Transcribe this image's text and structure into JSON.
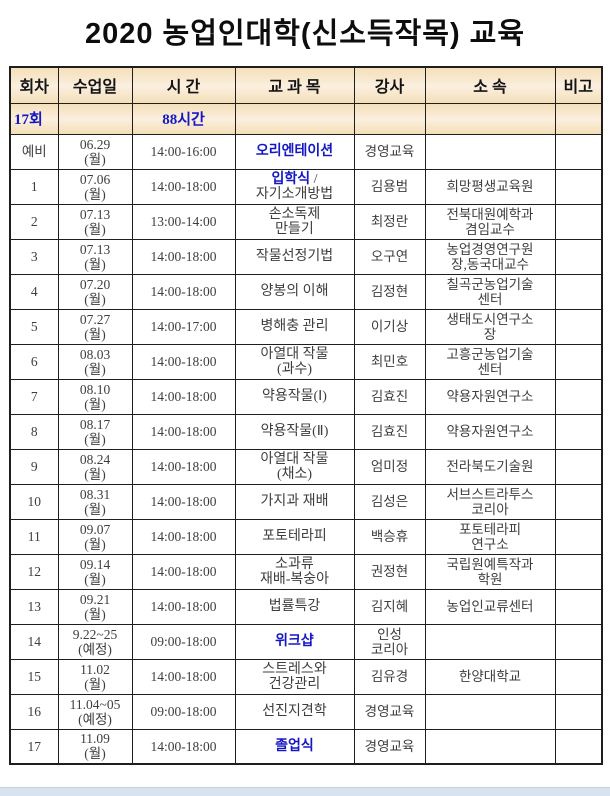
{
  "title": "2020 농업인대학(신소득작목) 교육",
  "colors": {
    "accent_blue": "#1517c4",
    "header_bg": "#f4dfb8",
    "body_text": "#3e3e3e",
    "border": "#1e1e1e",
    "scrollbar_track": "#d9e3f0"
  },
  "table": {
    "headers": [
      "회차",
      "수업일",
      "시 간",
      "교 과 목",
      "강사",
      "소 속",
      "비고"
    ],
    "summary": {
      "sessions": "17회",
      "hours": "88시간"
    },
    "rows": [
      {
        "no": "예비",
        "date": "06.29\n(월)",
        "time": "14:00-16:00",
        "subject": [
          {
            "t": "오리엔테이션",
            "blue": true
          }
        ],
        "instructor": "경영교육",
        "affiliation": "",
        "note": ""
      },
      {
        "no": "1",
        "date": "07.06\n(월)",
        "time": "14:00-18:00",
        "subject": [
          {
            "t": "입학식",
            "blue": true
          },
          {
            "t": " /\n자기소개방법",
            "blue": false
          }
        ],
        "instructor": "김용범",
        "affiliation": "희망평생교육원",
        "note": ""
      },
      {
        "no": "2",
        "date": "07.13\n(월)",
        "time": "13:00-14:00",
        "subject": [
          {
            "t": "손소독제\n만들기",
            "blue": false
          }
        ],
        "instructor": "최정란",
        "affiliation": "전북대원예학과\n겸임교수",
        "note": ""
      },
      {
        "no": "3",
        "date": "07.13\n(월)",
        "time": "14:00-18:00",
        "subject": [
          {
            "t": "작물선정기법",
            "blue": false
          }
        ],
        "instructor": "오구연",
        "affiliation": "농업경영연구원\n장,동국대교수",
        "note": ""
      },
      {
        "no": "4",
        "date": "07.20\n(월)",
        "time": "14:00-18:00",
        "subject": [
          {
            "t": "양봉의 이해",
            "blue": false
          }
        ],
        "instructor": "김정현",
        "affiliation": "칠곡군농업기술\n센터",
        "note": ""
      },
      {
        "no": "5",
        "date": "07.27\n(월)",
        "time": "14:00-17:00",
        "subject": [
          {
            "t": "병해충 관리",
            "blue": false
          }
        ],
        "instructor": "이기상",
        "affiliation": "생태도시연구소\n장",
        "note": ""
      },
      {
        "no": "6",
        "date": "08.03\n(월)",
        "time": "14:00-18:00",
        "subject": [
          {
            "t": "아열대 작물\n(과수)",
            "blue": false
          }
        ],
        "instructor": "최민호",
        "affiliation": "고흥군농업기술\n센터",
        "note": ""
      },
      {
        "no": "7",
        "date": "08.10\n(월)",
        "time": "14:00-18:00",
        "subject": [
          {
            "t": "약용작물(Ⅰ)",
            "blue": false
          }
        ],
        "instructor": "김효진",
        "affiliation": "약용자원연구소",
        "note": ""
      },
      {
        "no": "8",
        "date": "08.17\n(월)",
        "time": "14:00-18:00",
        "subject": [
          {
            "t": "약용작물(Ⅱ)",
            "blue": false
          }
        ],
        "instructor": "김효진",
        "affiliation": "약용자원연구소",
        "note": ""
      },
      {
        "no": "9",
        "date": "08.24\n(월)",
        "time": "14:00-18:00",
        "subject": [
          {
            "t": "아열대 작물\n(채소)",
            "blue": false
          }
        ],
        "instructor": "엄미정",
        "affiliation": "전라북도기술원",
        "note": ""
      },
      {
        "no": "10",
        "date": "08.31\n(월)",
        "time": "14:00-18:00",
        "subject": [
          {
            "t": "가지과 재배",
            "blue": false
          }
        ],
        "instructor": "김성은",
        "affiliation": "서브스트라투스\n코리아",
        "note": ""
      },
      {
        "no": "11",
        "date": "09.07\n(월)",
        "time": "14:00-18:00",
        "subject": [
          {
            "t": "포토테라피",
            "blue": false
          }
        ],
        "instructor": "백승휴",
        "affiliation": "포토테라피\n연구소",
        "note": ""
      },
      {
        "no": "12",
        "date": "09.14\n(월)",
        "time": "14:00-18:00",
        "subject": [
          {
            "t": "소과류\n재배-복숭아",
            "blue": false
          }
        ],
        "instructor": "권정현",
        "affiliation": "국립원예특작과\n학원",
        "note": ""
      },
      {
        "no": "13",
        "date": "09.21\n(월)",
        "time": "14:00-18:00",
        "subject": [
          {
            "t": "법률특강",
            "blue": false
          }
        ],
        "instructor": "김지혜",
        "affiliation": "농업인교류센터",
        "note": ""
      },
      {
        "no": "14",
        "date": "9.22~25\n(예정)",
        "time": "09:00-18:00",
        "subject": [
          {
            "t": "위크샵",
            "blue": true
          }
        ],
        "instructor": "인성\n코리아",
        "affiliation": "",
        "note": ""
      },
      {
        "no": "15",
        "date": "11.02\n(월)",
        "time": "14:00-18:00",
        "subject": [
          {
            "t": "스트레스와\n건강관리",
            "blue": false
          }
        ],
        "instructor": "김유경",
        "affiliation": "한양대학교",
        "note": ""
      },
      {
        "no": "16",
        "date": "11.04~05\n(예정)",
        "time": "09:00-18:00",
        "subject": [
          {
            "t": "선진지견학",
            "blue": false
          }
        ],
        "instructor": "경영교육",
        "affiliation": "",
        "note": ""
      },
      {
        "no": "17",
        "date": "11.09\n(월)",
        "time": "14:00-18:00",
        "subject": [
          {
            "t": "졸업식",
            "blue": true
          }
        ],
        "instructor": "경영교육",
        "affiliation": "",
        "note": ""
      }
    ]
  },
  "scrollbar": {
    "type": "horizontal"
  }
}
